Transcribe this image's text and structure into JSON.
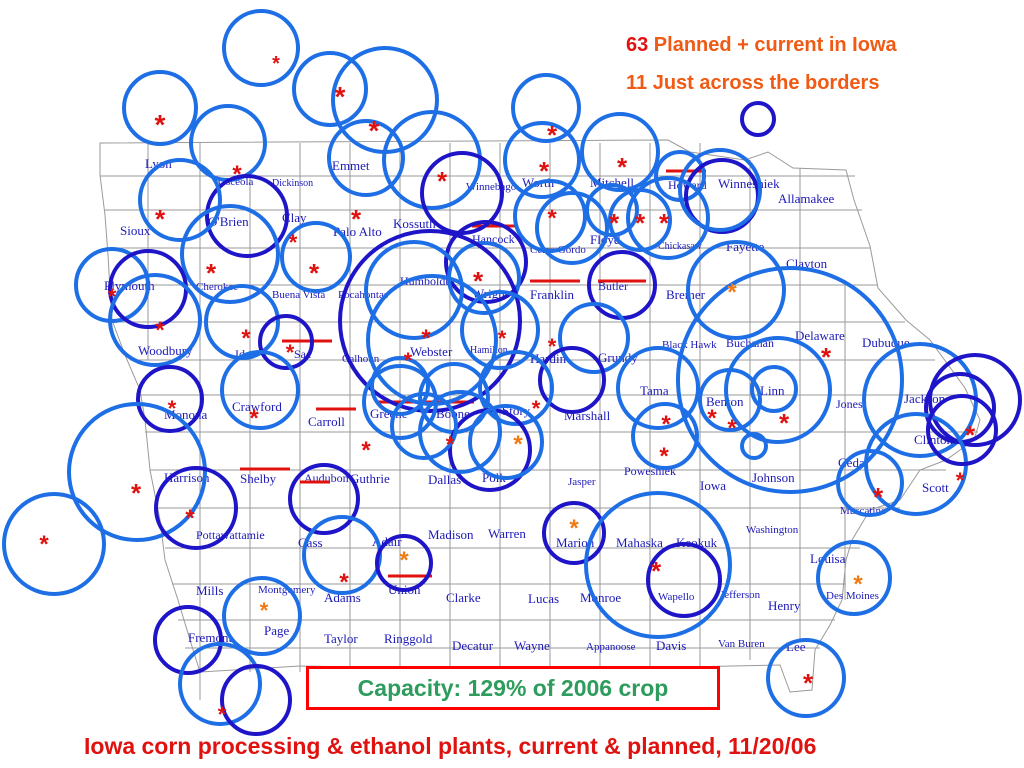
{
  "legend": {
    "planned_count": "63",
    "planned_label": " Planned + current in Iowa",
    "border_count": "11",
    "border_label": " Just across the borders"
  },
  "capacity": {
    "label": "Capacity: 129% of 2006 crop"
  },
  "caption": {
    "text": "Iowa corn processing & ethanol plants, current & planned, 11/20/06"
  },
  "colors": {
    "circle_light": "#1e6fe6",
    "circle_dark": "#1e14c8",
    "asterisk_red": "#e0120f",
    "asterisk_orange": "#f07a14",
    "county_label": "#1d1ab8",
    "map_lines": "#9a9a9a",
    "marker_red": "#e0120f"
  },
  "counties": [
    "Lyon",
    "Osceola",
    "Dickinson",
    "Emmet",
    "Winnebago",
    "Worth",
    "Mitchell",
    "Howard",
    "Winneshiek",
    "Allamakee",
    "Sioux",
    "O'Brien",
    "Clay",
    "Palo Alto",
    "Kossuth",
    "Hancock",
    "Cerro Gordo",
    "Floyd",
    "Chickasaw",
    "Fayette",
    "Clayton",
    "Plymouth",
    "Cherokee",
    "Buena Vista",
    "Pocahontas",
    "Humboldt",
    "Wright",
    "Franklin",
    "Butler",
    "Bremer",
    "Woodbury",
    "Ida",
    "Sac",
    "Calhoun",
    "Webster",
    "Hamilton",
    "Hardin",
    "Grundy",
    "Black Hawk",
    "Buchanan",
    "Delaware",
    "Dubuque",
    "Monona",
    "Crawford",
    "Carroll",
    "Greene",
    "Boone",
    "Story",
    "Marshall",
    "Tama",
    "Benton",
    "Linn",
    "Jones",
    "Jackson",
    "Clinton",
    "Harrison",
    "Shelby",
    "Audubon",
    "Guthrie",
    "Dallas",
    "Polk",
    "Jasper",
    "Poweshiek",
    "Iowa",
    "Johnson",
    "Cedar",
    "Scott",
    "Muscatine",
    "Pottawattamie",
    "Cass",
    "Adair",
    "Madison",
    "Warren",
    "Marion",
    "Mahaska",
    "Keokuk",
    "Washington",
    "Louisa",
    "Mills",
    "Montgomery",
    "Adams",
    "Union",
    "Clarke",
    "Lucas",
    "Monroe",
    "Wapello",
    "Jefferson",
    "Henry",
    "Des Moines",
    "Fremont",
    "Page",
    "Taylor",
    "Ringgold",
    "Decatur",
    "Wayne",
    "Appanoose",
    "Davis",
    "Van Buren",
    "Lee"
  ]
}
